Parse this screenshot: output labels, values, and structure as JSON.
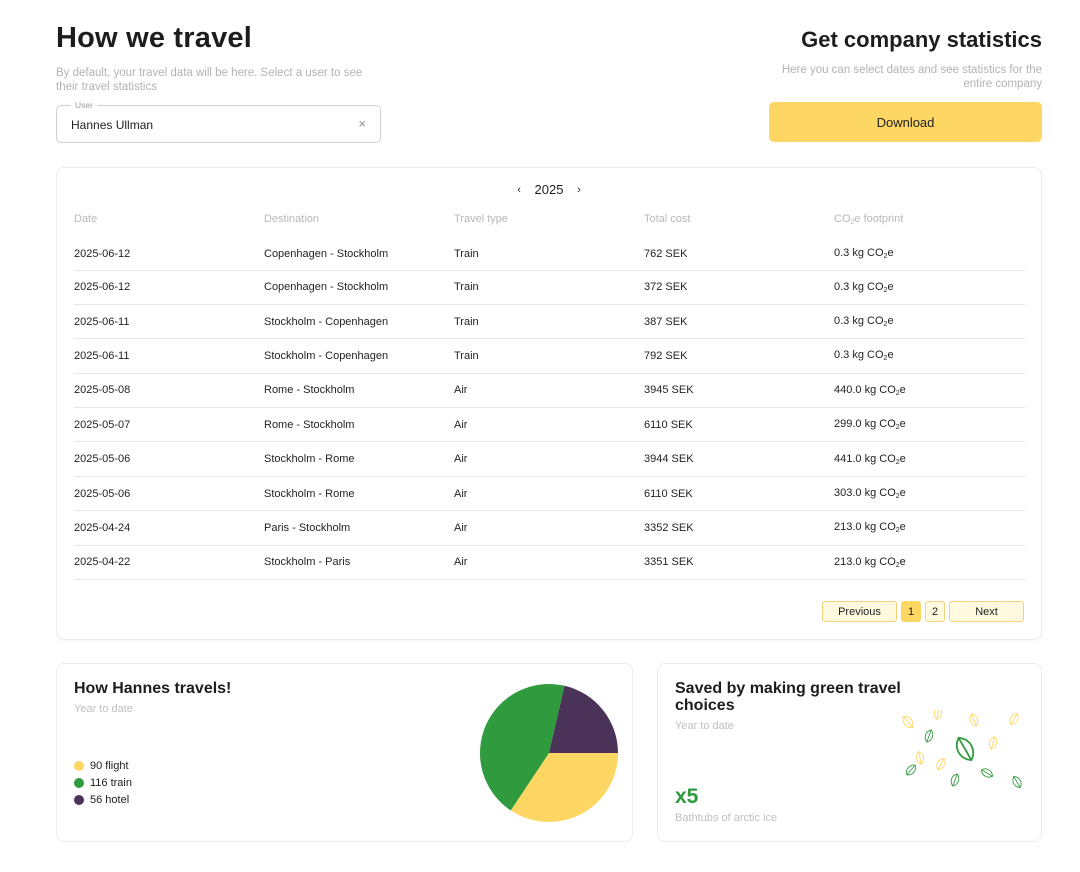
{
  "header": {
    "title": "How we travel",
    "subtitle": "By default, your travel data will be here. Select a user to see their travel statistics",
    "user_label": "User",
    "user_value": "Hannes Ullman",
    "clear_icon": "×"
  },
  "company": {
    "title": "Get company statistics",
    "subtitle": "Here you can select dates and see statistics for the entire company",
    "download_label": "Download"
  },
  "table": {
    "year": "2025",
    "prev_arrow": "‹",
    "next_arrow": "›",
    "columns": [
      "Date",
      "Destination",
      "Travel type",
      "Total cost",
      "CO"
    ],
    "rows": [
      {
        "date": "2025-06-12",
        "destination": "Copenhagen - Stockholm",
        "type": "Train",
        "cost": "762 SEK",
        "co2": "0.3 kg CO"
      },
      {
        "date": "2025-06-12",
        "destination": "Copenhagen - Stockholm",
        "type": "Train",
        "cost": "372 SEK",
        "co2": "0.3 kg CO"
      },
      {
        "date": "2025-06-11",
        "destination": "Stockholm - Copenhagen",
        "type": "Train",
        "cost": "387 SEK",
        "co2": "0.3 kg CO"
      },
      {
        "date": "2025-06-11",
        "destination": "Stockholm - Copenhagen",
        "type": "Train",
        "cost": "792 SEK",
        "co2": "0.3 kg CO"
      },
      {
        "date": "2025-05-08",
        "destination": "Rome - Stockholm",
        "type": "Air",
        "cost": "3945 SEK",
        "co2": "440.0 kg CO"
      },
      {
        "date": "2025-05-07",
        "destination": "Rome - Stockholm",
        "type": "Air",
        "cost": "6110 SEK",
        "co2": "299.0 kg CO"
      },
      {
        "date": "2025-05-06",
        "destination": "Stockholm - Rome",
        "type": "Air",
        "cost": "3944 SEK",
        "co2": "441.0 kg CO"
      },
      {
        "date": "2025-05-06",
        "destination": "Stockholm - Rome",
        "type": "Air",
        "cost": "6110 SEK",
        "co2": "303.0 kg CO"
      },
      {
        "date": "2025-04-24",
        "destination": "Paris - Stockholm",
        "type": "Air",
        "cost": "3352 SEK",
        "co2": "213.0 kg CO"
      },
      {
        "date": "2025-04-22",
        "destination": "Stockholm - Paris",
        "type": "Air",
        "cost": "3351 SEK",
        "co2": "213.0 kg CO"
      }
    ],
    "co2_subscript": "2",
    "co2_suffix": "e",
    "co2_header_suffix": "e footprint",
    "pagination": {
      "previous": "Previous",
      "pages": [
        "1",
        "2"
      ],
      "active": "1",
      "next": "Next"
    }
  },
  "travel_card": {
    "title": "How Hannes travels!",
    "subtitle": "Year to date",
    "legend": [
      {
        "label": "90 flight",
        "value": 90,
        "color": "#fdd663"
      },
      {
        "label": "116 train",
        "value": 116,
        "color": "#2f9a3e"
      },
      {
        "label": "56 hotel",
        "value": 56,
        "color": "#4a3259"
      }
    ]
  },
  "green_card": {
    "title": "Saved by making green travel choices",
    "subtitle": "Year to date",
    "value": "x5",
    "value_label": "Bathtubs of arctic ice",
    "accent": "#2f9a3e",
    "icon": "leaf-icon"
  }
}
